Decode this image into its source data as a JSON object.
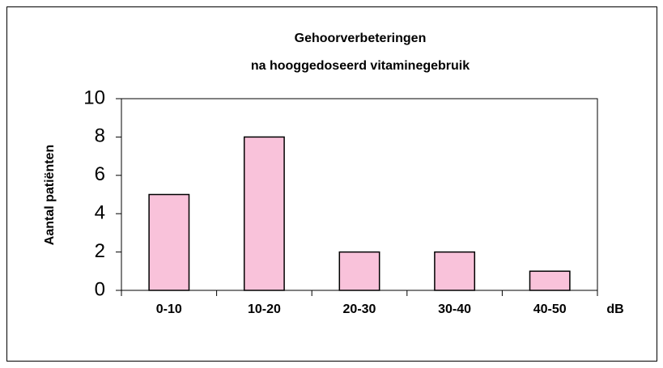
{
  "chart_data": {
    "type": "bar",
    "title": [
      "Gehoorverbeteringen",
      "na hooggedoseerd vitaminegebruik"
    ],
    "ylabel": "Aantal patiënten",
    "xlabel": "dB",
    "categories": [
      "0-10",
      "10-20",
      "20-30",
      "30-40",
      "40-50"
    ],
    "values": [
      5,
      8,
      2,
      2,
      1
    ],
    "color": "#f9c2da",
    "ylim": [
      0,
      10
    ],
    "yticks": [
      0,
      2,
      4,
      6,
      8,
      10
    ],
    "grid": false
  }
}
